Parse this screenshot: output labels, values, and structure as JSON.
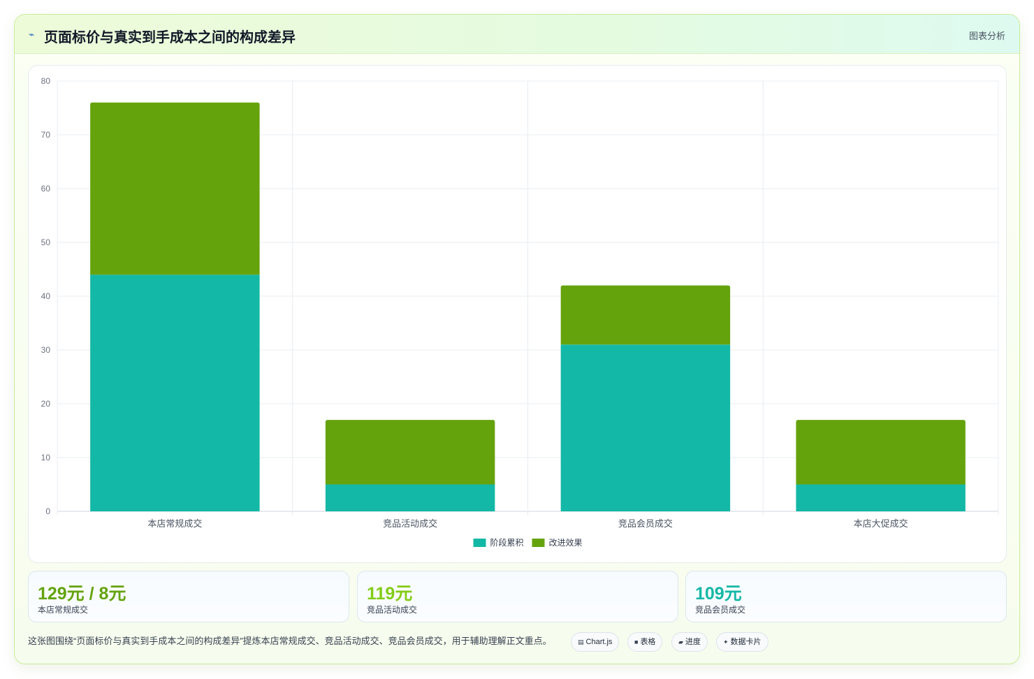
{
  "header": {
    "icon": "line-chart-icon",
    "title": "页面标价与真实到手成本之间的构成差异",
    "action_label": "图表分析"
  },
  "colors": {
    "series_primary": "#14b8a6",
    "series_secondary": "#65a30d",
    "accent_green": "#65a30d",
    "accent_lime": "#84cc16",
    "accent_teal": "#14b8a6"
  },
  "chart_data": {
    "type": "bar",
    "stacked": true,
    "categories": [
      "本店常规成交",
      "竞品活动成交",
      "竞品会员成交",
      "本店大促成交"
    ],
    "series": [
      {
        "name": "阶段累积",
        "values": [
          44,
          5,
          31,
          5
        ]
      },
      {
        "name": "改进效果",
        "values": [
          32,
          12,
          11,
          12
        ]
      }
    ],
    "ylim": [
      0,
      80
    ],
    "yticks": [
      0,
      10,
      20,
      30,
      40,
      50,
      60,
      70,
      80
    ],
    "grid": true,
    "legend_position": "bottom-center"
  },
  "stats": [
    {
      "value": "129元 / 8元",
      "label": "本店常规成交",
      "color": "#65a30d"
    },
    {
      "value": "119元",
      "label": "竞品活动成交",
      "color": "#84cc16"
    },
    {
      "value": "109元",
      "label": "竞品会员成交",
      "color": "#14b8a6"
    }
  ],
  "footer": {
    "text": "这张图围绕“页面标价与真实到手成本之间的构成差异”提炼本店常规成交、竞品活动成交、竞品会员成交，用于辅助理解正文重点。",
    "tags": [
      {
        "icon": "▤",
        "label": "Chart.js"
      },
      {
        "icon": "■",
        "label": "表格"
      },
      {
        "icon": "▰",
        "label": "进度"
      },
      {
        "icon": "✦",
        "label": "数据卡片"
      }
    ]
  }
}
